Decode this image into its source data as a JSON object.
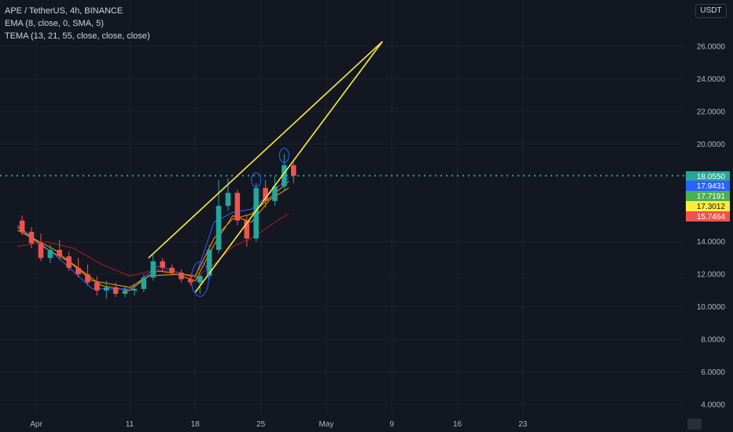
{
  "header": {
    "symbol_line": "APE / TetherUS, 4h, BINANCE",
    "indicator_1": "EMA (8, close, 0, SMA, 5)",
    "indicator_2": "TEMA (13, 21, 55, close, close, close)",
    "currency": "USDT"
  },
  "colors": {
    "background": "#131722",
    "bull": "#26a69a",
    "bear": "#ef5350",
    "drawing": "#ffeb3b",
    "ema": "#f59e0b",
    "tema_fast": "#2962ff",
    "tema_mid": "#ff9800",
    "tema_slow": "#b71c1c",
    "last_price_line": "#26a69a"
  },
  "chart_data": {
    "type": "candlestick",
    "title": "APE / TetherUS, 4h, BINANCE",
    "y_axis": {
      "ticks": [
        "26.0000",
        "24.0000",
        "22.0000",
        "20.0000",
        "14.0000",
        "12.0000",
        "10.0000",
        "8.0000",
        "6.0000",
        "4.0000"
      ],
      "range": [
        3.3,
        27.6
      ]
    },
    "x_axis": {
      "labels": [
        "Apr",
        "11",
        "18",
        "25",
        "May",
        "9",
        "16",
        "23"
      ]
    },
    "price_labels": [
      {
        "value": "18.0550",
        "role": "last price",
        "color": "#26a69a"
      },
      {
        "value": "17.9431",
        "role": "tema fast",
        "color": "#2962ff"
      },
      {
        "value": "17.7191",
        "role": "tema mid",
        "color": "#4caf50"
      },
      {
        "value": "17.3012",
        "role": "ema",
        "color": "#ffeb3b"
      },
      {
        "value": "15.7464",
        "role": "tema slow",
        "color": "#ef5350"
      }
    ],
    "last_price": 18.055,
    "candles": [
      {
        "d": "2022-03-30",
        "o": 15.3,
        "h": 15.6,
        "l": 14.4,
        "c": 14.6
      },
      {
        "d": "2022-03-31",
        "o": 14.6,
        "h": 14.9,
        "l": 13.6,
        "c": 13.9
      },
      {
        "d": "2022-04-01",
        "o": 13.9,
        "h": 14.5,
        "l": 12.8,
        "c": 13.0
      },
      {
        "d": "2022-04-02",
        "o": 13.0,
        "h": 13.8,
        "l": 12.7,
        "c": 13.5
      },
      {
        "d": "2022-04-03",
        "o": 13.5,
        "h": 14.1,
        "l": 12.9,
        "c": 13.1
      },
      {
        "d": "2022-04-04",
        "o": 13.1,
        "h": 13.4,
        "l": 12.2,
        "c": 12.4
      },
      {
        "d": "2022-04-05",
        "o": 12.4,
        "h": 13.0,
        "l": 11.8,
        "c": 12.0
      },
      {
        "d": "2022-04-06",
        "o": 12.0,
        "h": 12.6,
        "l": 11.3,
        "c": 11.5
      },
      {
        "d": "2022-04-07",
        "o": 11.5,
        "h": 11.9,
        "l": 10.7,
        "c": 11.0
      },
      {
        "d": "2022-04-08",
        "o": 11.0,
        "h": 11.6,
        "l": 10.5,
        "c": 11.2
      },
      {
        "d": "2022-04-09",
        "o": 11.2,
        "h": 11.5,
        "l": 10.6,
        "c": 10.8
      },
      {
        "d": "2022-04-10",
        "o": 10.8,
        "h": 11.3,
        "l": 10.6,
        "c": 11.0
      },
      {
        "d": "2022-04-11",
        "o": 11.0,
        "h": 11.4,
        "l": 10.7,
        "c": 11.1
      },
      {
        "d": "2022-04-12",
        "o": 11.1,
        "h": 12.0,
        "l": 10.9,
        "c": 11.8
      },
      {
        "d": "2022-04-13",
        "o": 11.8,
        "h": 13.2,
        "l": 11.6,
        "c": 12.8
      },
      {
        "d": "2022-04-14",
        "o": 12.8,
        "h": 13.0,
        "l": 12.2,
        "c": 12.4
      },
      {
        "d": "2022-04-15",
        "o": 12.4,
        "h": 12.6,
        "l": 11.9,
        "c": 12.1
      },
      {
        "d": "2022-04-16",
        "o": 12.1,
        "h": 12.3,
        "l": 11.5,
        "c": 11.7
      },
      {
        "d": "2022-04-17",
        "o": 11.7,
        "h": 12.0,
        "l": 11.3,
        "c": 11.5
      },
      {
        "d": "2022-04-18",
        "o": 11.5,
        "h": 12.0,
        "l": 10.8,
        "c": 11.9
      },
      {
        "d": "2022-04-19",
        "o": 11.9,
        "h": 13.8,
        "l": 11.7,
        "c": 13.5
      },
      {
        "d": "2022-04-20",
        "o": 13.5,
        "h": 17.8,
        "l": 13.3,
        "c": 16.2
      },
      {
        "d": "2022-04-21",
        "o": 16.2,
        "h": 17.9,
        "l": 15.9,
        "c": 17.0
      },
      {
        "d": "2022-04-22",
        "o": 17.0,
        "h": 17.2,
        "l": 15.0,
        "c": 15.3
      },
      {
        "d": "2022-04-23",
        "o": 15.3,
        "h": 15.6,
        "l": 13.7,
        "c": 14.2
      },
      {
        "d": "2022-04-24",
        "o": 14.2,
        "h": 17.6,
        "l": 14.0,
        "c": 17.3
      },
      {
        "d": "2022-04-25",
        "o": 17.3,
        "h": 17.8,
        "l": 16.1,
        "c": 16.5
      },
      {
        "d": "2022-04-26",
        "o": 16.5,
        "h": 18.0,
        "l": 16.2,
        "c": 17.4
      },
      {
        "d": "2022-04-27",
        "o": 17.4,
        "h": 19.4,
        "l": 17.1,
        "c": 18.7
      },
      {
        "d": "2022-04-28",
        "o": 18.7,
        "h": 18.9,
        "l": 17.6,
        "c": 18.055
      }
    ],
    "ema": [
      {
        "d": "2022-03-30",
        "v": 14.9
      },
      {
        "d": "2022-04-02",
        "v": 13.6
      },
      {
        "d": "2022-04-05",
        "v": 12.6
      },
      {
        "d": "2022-04-08",
        "v": 11.3
      },
      {
        "d": "2022-04-11",
        "v": 11.0
      },
      {
        "d": "2022-04-13",
        "v": 11.9
      },
      {
        "d": "2022-04-16",
        "v": 12.0
      },
      {
        "d": "2022-04-18",
        "v": 11.6
      },
      {
        "d": "2022-04-20",
        "v": 13.8
      },
      {
        "d": "2022-04-22",
        "v": 15.6
      },
      {
        "d": "2022-04-24",
        "v": 15.2
      },
      {
        "d": "2022-04-26",
        "v": 16.6
      },
      {
        "d": "2022-04-28",
        "v": 17.3012
      }
    ],
    "tema": [
      {
        "name": "fast",
        "points": [
          {
            "d": "2022-03-30",
            "v": 15.0
          },
          {
            "d": "2022-04-03",
            "v": 13.2
          },
          {
            "d": "2022-04-07",
            "v": 11.1
          },
          {
            "d": "2022-04-11",
            "v": 11.1
          },
          {
            "d": "2022-04-14",
            "v": 12.5
          },
          {
            "d": "2022-04-18",
            "v": 11.8
          },
          {
            "d": "2022-04-20",
            "v": 15.2
          },
          {
            "d": "2022-04-22",
            "v": 15.8
          },
          {
            "d": "2022-04-24",
            "v": 16.0
          },
          {
            "d": "2022-04-28",
            "v": 17.9431
          }
        ]
      },
      {
        "name": "mid",
        "points": [
          {
            "d": "2022-03-30",
            "v": 14.7
          },
          {
            "d": "2022-04-03",
            "v": 13.5
          },
          {
            "d": "2022-04-07",
            "v": 11.6
          },
          {
            "d": "2022-04-11",
            "v": 11.2
          },
          {
            "d": "2022-04-14",
            "v": 12.2
          },
          {
            "d": "2022-04-18",
            "v": 11.9
          },
          {
            "d": "2022-04-20",
            "v": 14.2
          },
          {
            "d": "2022-04-22",
            "v": 15.4
          },
          {
            "d": "2022-04-24",
            "v": 15.7
          },
          {
            "d": "2022-04-28",
            "v": 17.7191
          }
        ]
      },
      {
        "name": "slow",
        "points": [
          {
            "d": "2022-03-30",
            "v": 13.7
          },
          {
            "d": "2022-04-02",
            "v": 14.0
          },
          {
            "d": "2022-04-05",
            "v": 13.6
          },
          {
            "d": "2022-04-08",
            "v": 12.6
          },
          {
            "d": "2022-04-11",
            "v": 11.9
          },
          {
            "d": "2022-04-14",
            "v": 12.3
          },
          {
            "d": "2022-04-18",
            "v": 11.8
          },
          {
            "d": "2022-04-20",
            "v": 12.6
          },
          {
            "d": "2022-04-22",
            "v": 13.7
          },
          {
            "d": "2022-04-24",
            "v": 14.2
          },
          {
            "d": "2022-04-26",
            "v": 15.0
          },
          {
            "d": "2022-04-28",
            "v": 15.7464
          }
        ]
      }
    ],
    "drawings": {
      "wedge_upper": [
        {
          "d": "2022-04-13",
          "v": 13.0
        },
        {
          "d": "2022-05-08",
          "v": 26.3
        }
      ],
      "wedge_lower": [
        {
          "d": "2022-04-18",
          "v": 10.9
        },
        {
          "d": "2022-05-08",
          "v": 26.3
        }
      ],
      "ellipses": [
        {
          "d": "2022-04-18",
          "v": 11.7
        },
        {
          "d": "2022-04-24",
          "v": 17.8
        },
        {
          "d": "2022-04-27",
          "v": 19.3
        }
      ]
    }
  }
}
